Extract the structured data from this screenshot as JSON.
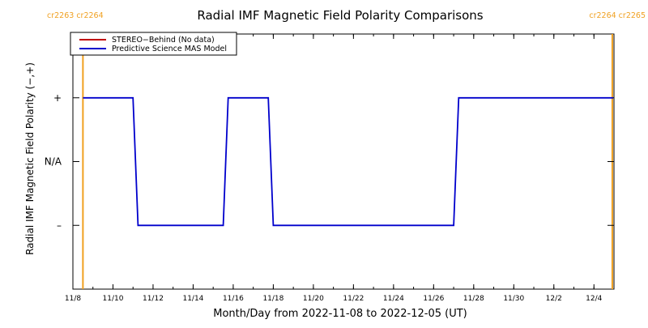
{
  "chart_data": {
    "type": "line",
    "title": "Radial IMF Magnetic Field Polarity Comparisons",
    "xlabel": "Month/Day from 2022-11-08 to 2022-12-05 (UT)",
    "ylabel": "Radial IMF Magnetic Field Polarity (−,+)",
    "x_range": [
      "2022-11-08",
      "2022-12-05"
    ],
    "x_ticks": [
      {
        "label": "11/8",
        "date": "2022-11-08"
      },
      {
        "label": "11/10",
        "date": "2022-11-10"
      },
      {
        "label": "11/12",
        "date": "2022-11-12"
      },
      {
        "label": "11/14",
        "date": "2022-11-14"
      },
      {
        "label": "11/16",
        "date": "2022-11-16"
      },
      {
        "label": "11/18",
        "date": "2022-11-18"
      },
      {
        "label": "11/20",
        "date": "2022-11-20"
      },
      {
        "label": "11/22",
        "date": "2022-11-22"
      },
      {
        "label": "11/24",
        "date": "2022-11-24"
      },
      {
        "label": "11/26",
        "date": "2022-11-26"
      },
      {
        "label": "11/28",
        "date": "2022-11-28"
      },
      {
        "label": "11/30",
        "date": "2022-11-30"
      },
      {
        "label": "12/2",
        "date": "2022-12-02"
      },
      {
        "label": "12/4",
        "date": "2022-12-04"
      }
    ],
    "y_ticks": [
      {
        "label": "+",
        "value": 1
      },
      {
        "label": "N/A",
        "value": 0
      },
      {
        "label": "–",
        "value": -1
      }
    ],
    "y_range": [
      -2,
      2
    ],
    "carrington_markers": [
      {
        "date": "2022-11-08T12:00",
        "label": "cr2263 cr2264",
        "side": "left"
      },
      {
        "date": "2022-12-04T22:00",
        "label": "cr2264 cr2265",
        "side": "right"
      }
    ],
    "legend": {
      "placement": "top-left",
      "entries": [
        {
          "label": "STEREO−Behind (No data)",
          "color": "#c00000"
        },
        {
          "label": "Predictive Science MAS Model",
          "color": "#0000cc"
        }
      ]
    },
    "series": [
      {
        "name": "Predictive Science MAS Model",
        "color": "#0000cc",
        "points": [
          {
            "x": "2022-11-08T12:00",
            "y": 1
          },
          {
            "x": "2022-11-11T00:00",
            "y": 1
          },
          {
            "x": "2022-11-11T06:00",
            "y": -1
          },
          {
            "x": "2022-11-15T12:00",
            "y": -1
          },
          {
            "x": "2022-11-15T18:00",
            "y": 1
          },
          {
            "x": "2022-11-17T18:00",
            "y": 1
          },
          {
            "x": "2022-11-18T00:00",
            "y": -1
          },
          {
            "x": "2022-11-27T00:00",
            "y": -1
          },
          {
            "x": "2022-11-27T06:00",
            "y": 1
          },
          {
            "x": "2022-12-04T23:00",
            "y": 1
          }
        ]
      }
    ],
    "colors": {
      "carrington_marker": "#f0a020",
      "axes": "#000000"
    }
  }
}
